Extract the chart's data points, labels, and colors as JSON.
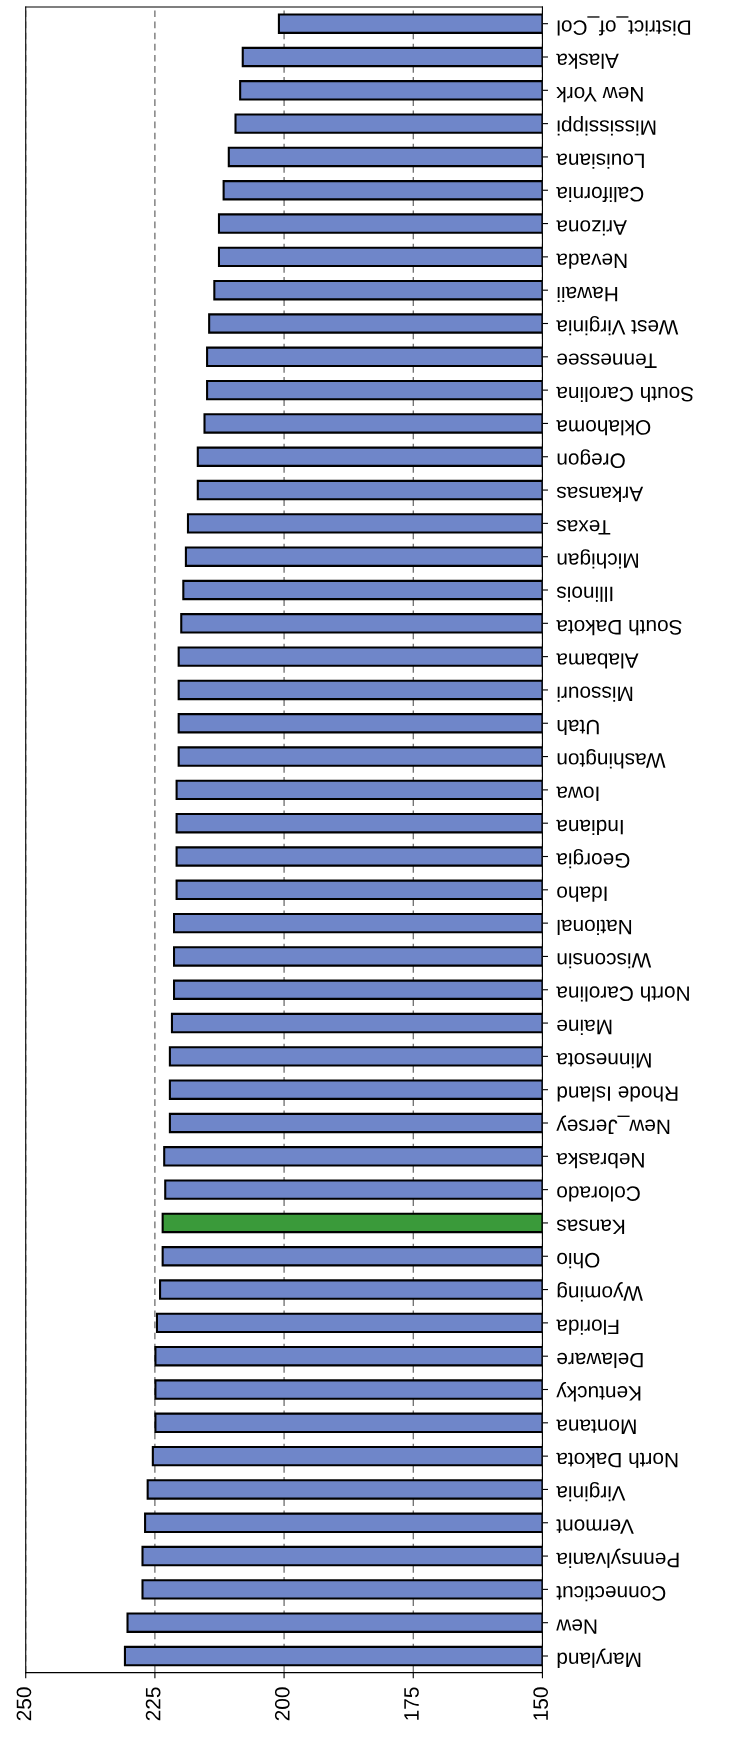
{
  "chart_data": {
    "type": "bar",
    "orientation": "horizontal",
    "categories": [
      "District_of_Col",
      "Alaska",
      "New York",
      "Mississippi",
      "Louisiana",
      "California",
      "Arizona",
      "Nevada",
      "Hawaii",
      "West Virginia",
      "Tennessee",
      "South Carolina",
      "Oklahoma",
      "Oregon",
      "Arkansas",
      "Texas",
      "Michigan",
      "Illinois",
      "South Dakota",
      "Alabama",
      "Missouri",
      "Utah",
      "Washington",
      "Iowa",
      "Indiana",
      "Georgia",
      "Idaho",
      "National",
      "Wisconsin",
      "North Carolina",
      "Maine",
      "Minnesota",
      "Rhode Island",
      "New_Jersey",
      "Nebraska",
      "Colorado",
      "Kansas",
      "Ohio",
      "Wyoming",
      "Florida",
      "Delaware",
      "Kentucky",
      "Montana",
      "North Dakota",
      "Virginia",
      "Vermont",
      "Pennsylvania",
      "Connecticut",
      "New",
      "Maryland"
    ],
    "values": [
      201.0,
      208.0,
      208.5,
      209.4,
      210.7,
      211.7,
      212.6,
      212.6,
      213.5,
      214.5,
      214.9,
      214.9,
      215.4,
      216.7,
      216.7,
      218.6,
      219.0,
      219.5,
      219.9,
      220.4,
      220.4,
      220.4,
      220.4,
      220.8,
      220.8,
      220.8,
      220.8,
      221.3,
      221.3,
      221.3,
      221.7,
      222.1,
      222.1,
      222.1,
      223.2,
      223.0,
      223.5,
      223.5,
      224.0,
      224.6,
      224.9,
      224.9,
      224.9,
      225.4,
      226.4,
      226.9,
      227.4,
      227.4,
      230.3,
      230.8
    ],
    "colors": [
      "#6f86c9",
      "#6f86c9",
      "#6f86c9",
      "#6f86c9",
      "#6f86c9",
      "#6f86c9",
      "#6f86c9",
      "#6f86c9",
      "#6f86c9",
      "#6f86c9",
      "#6f86c9",
      "#6f86c9",
      "#6f86c9",
      "#6f86c9",
      "#6f86c9",
      "#6f86c9",
      "#6f86c9",
      "#6f86c9",
      "#6f86c9",
      "#6f86c9",
      "#6f86c9",
      "#6f86c9",
      "#6f86c9",
      "#6f86c9",
      "#6f86c9",
      "#6f86c9",
      "#6f86c9",
      "#6f86c9",
      "#6f86c9",
      "#6f86c9",
      "#6f86c9",
      "#6f86c9",
      "#6f86c9",
      "#6f86c9",
      "#6f86c9",
      "#6f86c9",
      "#3a9a3a",
      "#6f86c9",
      "#6f86c9",
      "#6f86c9",
      "#6f86c9",
      "#6f86c9",
      "#6f86c9",
      "#6f86c9",
      "#6f86c9",
      "#6f86c9",
      "#6f86c9",
      "#6f86c9",
      "#6f86c9",
      "#6f86c9"
    ],
    "xlim": [
      250,
      150
    ],
    "xticks": [
      250,
      225,
      200,
      175,
      150
    ],
    "grid": "x"
  }
}
